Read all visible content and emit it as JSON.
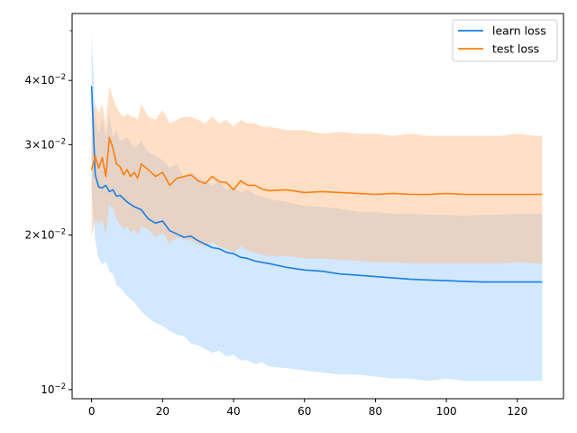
{
  "chart_data": {
    "type": "line",
    "title": "",
    "xlabel": "",
    "ylabel": "",
    "yscale": "log",
    "xlim": [
      -5.5,
      133
    ],
    "ylim": [
      0.0096,
      0.054
    ],
    "x_ticks": [
      0,
      20,
      40,
      60,
      80,
      100,
      120
    ],
    "x_tick_labels": [
      "0",
      "20",
      "40",
      "60",
      "80",
      "100",
      "120"
    ],
    "y_ticks": [
      0.01,
      0.02,
      0.03,
      0.04
    ],
    "y_tick_labels": [
      {
        "mant": "",
        "exp": "−2",
        "base": "10"
      },
      {
        "mant": "2×",
        "exp": "−2",
        "base": "10"
      },
      {
        "mant": "3×",
        "exp": "−2",
        "base": "10"
      },
      {
        "mant": "4×",
        "exp": "−2",
        "base": "10"
      }
    ],
    "grid": false,
    "legend_position": "top-right",
    "series": [
      {
        "name": "learn loss",
        "color": "#1a7ee6",
        "band_color": "#99ccff",
        "x": [
          0,
          1,
          2,
          3,
          4,
          5,
          6,
          7,
          8,
          10,
          12,
          14,
          16,
          18,
          20,
          22,
          24,
          26,
          28,
          30,
          32,
          34,
          36,
          38,
          40,
          42,
          44,
          46,
          48,
          50,
          55,
          60,
          65,
          70,
          75,
          80,
          85,
          90,
          95,
          100,
          105,
          110,
          115,
          120,
          125,
          127
        ],
        "mean": [
          0.039,
          0.0262,
          0.0248,
          0.0247,
          0.025,
          0.0243,
          0.0245,
          0.0238,
          0.0239,
          0.0232,
          0.0227,
          0.0224,
          0.0215,
          0.0211,
          0.0213,
          0.0204,
          0.0201,
          0.0198,
          0.0199,
          0.0195,
          0.0192,
          0.0189,
          0.0188,
          0.0185,
          0.0184,
          0.0181,
          0.018,
          0.0178,
          0.0177,
          0.0176,
          0.0173,
          0.0171,
          0.017,
          0.0168,
          0.0167,
          0.0166,
          0.0165,
          0.0164,
          0.01635,
          0.0163,
          0.01625,
          0.0162,
          0.0162,
          0.0162,
          0.0162,
          0.0162
        ],
        "upper": [
          0.05,
          0.034,
          0.0315,
          0.034,
          0.031,
          0.0345,
          0.031,
          0.032,
          0.0305,
          0.031,
          0.0295,
          0.0305,
          0.029,
          0.0285,
          0.028,
          0.027,
          0.0275,
          0.026,
          0.0265,
          0.026,
          0.0255,
          0.025,
          0.0255,
          0.0245,
          0.0248,
          0.0242,
          0.0245,
          0.024,
          0.0238,
          0.0235,
          0.0232,
          0.0228,
          0.0227,
          0.0225,
          0.0222,
          0.0222,
          0.022,
          0.022,
          0.0219,
          0.0219,
          0.0218,
          0.0219,
          0.0219,
          0.022,
          0.022,
          0.022
        ],
        "lower": [
          0.0245,
          0.0195,
          0.018,
          0.0175,
          0.0178,
          0.017,
          0.0168,
          0.016,
          0.0158,
          0.0152,
          0.0148,
          0.0142,
          0.0138,
          0.0135,
          0.0133,
          0.013,
          0.0128,
          0.0127,
          0.0123,
          0.0122,
          0.012,
          0.0118,
          0.0119,
          0.0116,
          0.0117,
          0.0114,
          0.0114,
          0.0112,
          0.0113,
          0.0111,
          0.011,
          0.0109,
          0.0108,
          0.0107,
          0.0107,
          0.0106,
          0.0105,
          0.0105,
          0.0104,
          0.0105,
          0.0104,
          0.0104,
          0.0104,
          0.0104,
          0.0104,
          0.0104
        ]
      },
      {
        "name": "test loss",
        "color": "#ff7f0e",
        "band_color": "#ffbb80",
        "x": [
          0,
          1,
          2,
          3,
          4,
          5,
          6,
          7,
          8,
          9,
          10,
          11,
          12,
          13,
          14,
          16,
          18,
          20,
          22,
          24,
          26,
          28,
          30,
          32,
          34,
          36,
          38,
          40,
          42,
          44,
          46,
          48,
          50,
          55,
          60,
          65,
          70,
          75,
          80,
          85,
          90,
          95,
          100,
          105,
          110,
          115,
          120,
          125,
          127
        ],
        "mean": [
          0.0268,
          0.0285,
          0.027,
          0.0283,
          0.026,
          0.031,
          0.0295,
          0.0275,
          0.0272,
          0.0262,
          0.0268,
          0.026,
          0.0265,
          0.0258,
          0.0275,
          0.0268,
          0.026,
          0.0265,
          0.025,
          0.0258,
          0.026,
          0.0262,
          0.0255,
          0.0252,
          0.026,
          0.0254,
          0.0253,
          0.0245,
          0.0255,
          0.025,
          0.025,
          0.0246,
          0.0244,
          0.0245,
          0.0242,
          0.0243,
          0.0242,
          0.0241,
          0.024,
          0.0241,
          0.024,
          0.024,
          0.0241,
          0.024,
          0.024,
          0.024,
          0.024,
          0.024,
          0.024
        ],
        "upper": [
          0.034,
          0.036,
          0.0345,
          0.036,
          0.033,
          0.039,
          0.037,
          0.0355,
          0.0345,
          0.034,
          0.0345,
          0.034,
          0.034,
          0.0335,
          0.036,
          0.034,
          0.0335,
          0.035,
          0.033,
          0.0335,
          0.034,
          0.034,
          0.0335,
          0.033,
          0.034,
          0.033,
          0.0335,
          0.0325,
          0.0335,
          0.033,
          0.033,
          0.0325,
          0.0325,
          0.032,
          0.032,
          0.0315,
          0.0318,
          0.0315,
          0.0315,
          0.0312,
          0.0315,
          0.0312,
          0.0312,
          0.0312,
          0.0312,
          0.0312,
          0.0315,
          0.0312,
          0.0312
        ],
        "lower": [
          0.0198,
          0.0215,
          0.021,
          0.0215,
          0.02,
          0.023,
          0.0225,
          0.0215,
          0.021,
          0.0205,
          0.0208,
          0.0202,
          0.0205,
          0.02,
          0.0208,
          0.0205,
          0.0198,
          0.0202,
          0.0192,
          0.0198,
          0.0196,
          0.0195,
          0.0192,
          0.019,
          0.0194,
          0.019,
          0.0188,
          0.0185,
          0.019,
          0.0186,
          0.0185,
          0.0183,
          0.0182,
          0.0182,
          0.018,
          0.018,
          0.0179,
          0.0178,
          0.0177,
          0.0177,
          0.0176,
          0.0176,
          0.0176,
          0.0176,
          0.0176,
          0.0176,
          0.0177,
          0.0176,
          0.0176
        ]
      }
    ]
  }
}
